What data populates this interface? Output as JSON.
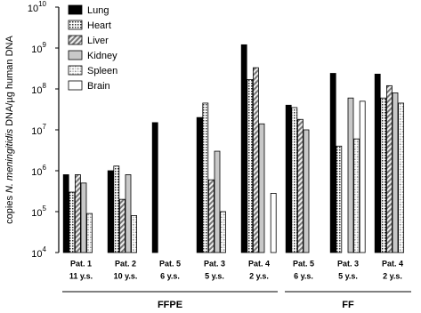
{
  "chart_data": {
    "type": "bar",
    "log_scale": true,
    "y_label": {
      "prefix": "copies",
      "italic": "N. meningitidis",
      "suffix": "DNA/µg human DNA"
    },
    "categories": [
      "Pat. 1",
      "Pat. 2",
      "Pat. 5",
      "Pat. 3",
      "Pat. 4",
      "Pat. 5",
      "Pat. 3",
      "Pat. 4"
    ],
    "category_sublabels": [
      "11 y.s.",
      "10 y.s.",
      "6 y.s.",
      "5 y.s.",
      "2 y.s.",
      "6 y.s.",
      "5 y.s.",
      "2 y.s."
    ],
    "groups": [
      {
        "label": "FFPE",
        "count": 5
      },
      {
        "label": "FF",
        "count": 3
      }
    ],
    "series": [
      {
        "name": "Lung",
        "color": "#000000",
        "pattern": "solid",
        "values": [
          800000,
          1000000,
          15000000,
          20000000,
          1200000000,
          40000000,
          240000000,
          230000000
        ]
      },
      {
        "name": "Heart",
        "color": "#444444",
        "pattern": "dots",
        "values": [
          300000,
          1300000,
          null,
          45000000,
          170000000,
          35000000,
          4000000,
          60000000
        ]
      },
      {
        "name": "Liver",
        "color": "#777777",
        "pattern": "hatch",
        "values": [
          800000,
          200000,
          null,
          600000,
          330000000,
          18000000,
          null,
          120000000
        ]
      },
      {
        "name": "Kidney",
        "color": "#c8c8c8",
        "pattern": "solid",
        "values": [
          500000,
          800000,
          null,
          3000000,
          14000000,
          10000000,
          60000000,
          80000000
        ]
      },
      {
        "name": "Spleen",
        "color": "#999999",
        "pattern": "dots-hatch",
        "values": [
          90000,
          80000,
          null,
          100000,
          null,
          null,
          6000000,
          45000000
        ]
      },
      {
        "name": "Brain",
        "color": "#ffffff",
        "pattern": "solid",
        "values": [
          null,
          null,
          null,
          null,
          280000,
          null,
          50000000,
          null
        ]
      }
    ],
    "ylim": [
      10000,
      10000000000
    ],
    "yticks": [
      {
        "value": 10000,
        "label": "10",
        "exponent": "4"
      },
      {
        "value": 100000,
        "label": "10",
        "exponent": "5"
      },
      {
        "value": 1000000,
        "label": "10",
        "exponent": "6"
      },
      {
        "value": 10000000,
        "label": "10",
        "exponent": "7"
      },
      {
        "value": 100000000,
        "label": "10",
        "exponent": "8"
      },
      {
        "value": 1000000000,
        "label": "10",
        "exponent": "9"
      },
      {
        "value": 10000000000,
        "label": "10",
        "exponent": "10"
      }
    ],
    "legend": "top-left"
  }
}
